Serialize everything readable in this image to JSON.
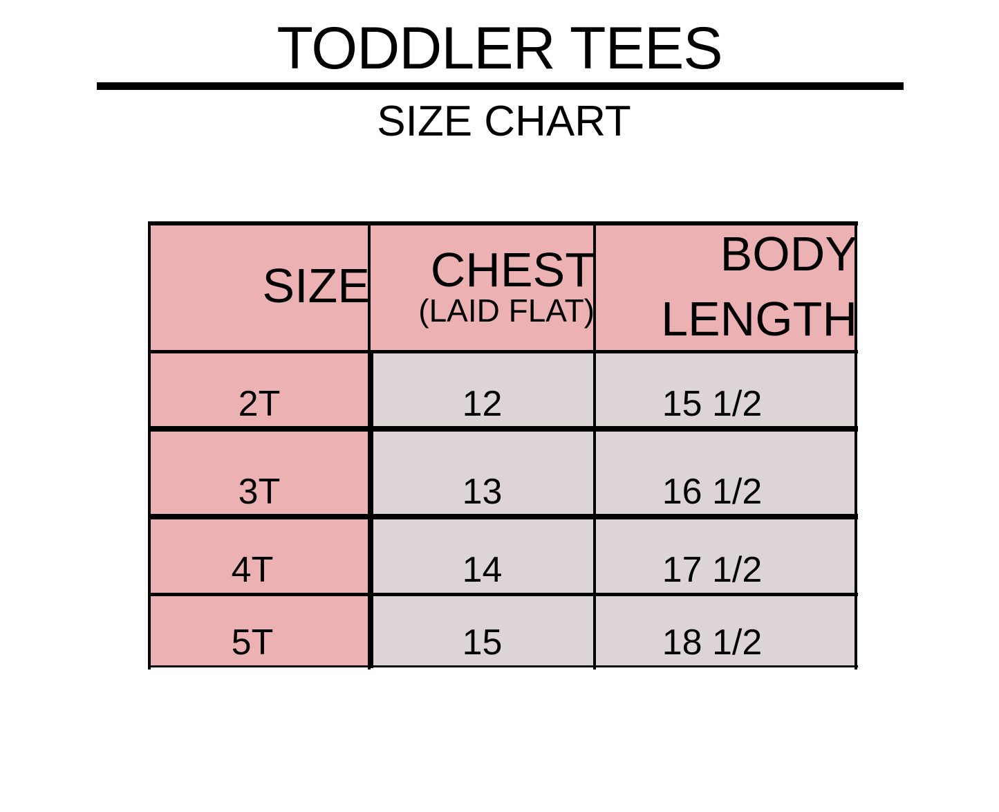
{
  "title": "TODDLER TEES",
  "subtitle": "SIZE CHART",
  "colors": {
    "header": "#ecb2b3",
    "size_column": "#ecb2b3",
    "data_cells": "#dcd4d5",
    "lines": "#000000"
  },
  "table": {
    "headers": [
      {
        "label": "SIZE"
      },
      {
        "label": "CHEST",
        "sublabel": "(LAID FLAT)"
      },
      {
        "label": "BODY",
        "label2": "LENGTH"
      }
    ],
    "rows": [
      {
        "size": "2T",
        "chest": "12",
        "body_length": "15 1/2"
      },
      {
        "size": "3T",
        "chest": "13",
        "body_length": "16 1/2"
      },
      {
        "size": "4T",
        "chest": "14",
        "body_length": "17 1/2"
      },
      {
        "size": "5T",
        "chest": "15",
        "body_length": "18 1/2"
      }
    ]
  }
}
